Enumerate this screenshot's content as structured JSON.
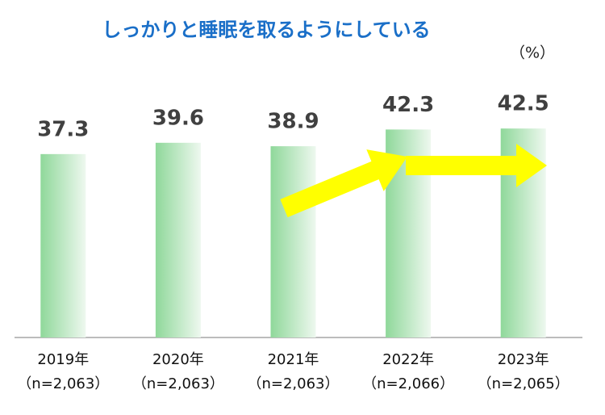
{
  "chart_data": {
    "type": "bar",
    "title": "しっかりと睡眠を取るようにしている",
    "unit_label": "（%）",
    "categories": [
      "2019年",
      "2020年",
      "2021年",
      "2022年",
      "2023年"
    ],
    "sample_sizes": [
      "（n=2,063）",
      "（n=2,063）",
      "（n=2,063）",
      "（n=2,066）",
      "（n=2,065）"
    ],
    "values": [
      37.3,
      39.6,
      38.9,
      42.3,
      42.5
    ],
    "color": "#8fd89a"
  }
}
